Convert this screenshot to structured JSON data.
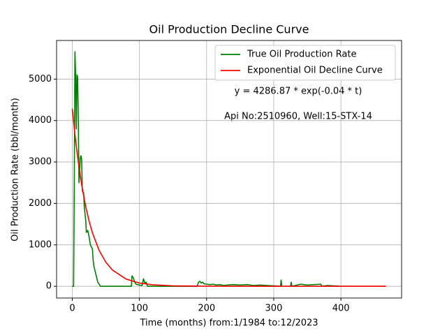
{
  "chart_data": {
    "type": "line",
    "title": "Oil Production Decline Curve",
    "xlabel": "Time (months) from:1/1984 to:12/2023",
    "ylabel": "Oil Production Rate (bbl/month)",
    "annotations": [
      "y = 4286.87 * exp(-0.04 * t)",
      "Api No:2510960, Well:15-STX-14"
    ],
    "xlim": [
      -23.35,
      490.35
    ],
    "ylim": [
      -283,
      5932
    ],
    "xticks": [
      0,
      100,
      200,
      300,
      400
    ],
    "yticks": [
      0,
      1000,
      2000,
      3000,
      4000,
      5000
    ],
    "grid": true,
    "legend": "upper right",
    "series": [
      {
        "name": "True Oil Production Rate",
        "color": "#008000",
        "x": [
          0,
          2,
          3,
          4,
          5,
          6,
          7,
          8,
          9,
          10,
          12,
          13,
          14,
          15,
          17,
          18,
          20,
          21,
          23,
          25,
          27,
          30,
          31,
          32,
          35,
          38,
          42,
          88,
          89,
          91,
          93,
          95,
          100,
          104,
          106,
          108,
          110,
          112,
          186,
          188,
          190,
          192,
          194,
          196,
          200,
          205,
          210,
          215,
          220,
          225,
          230,
          240,
          250,
          260,
          270,
          280,
          290,
          300,
          310,
          311,
          312,
          325,
          326,
          327,
          340,
          350,
          360,
          370,
          372,
          380,
          400,
          467
        ],
        "values": [
          0,
          0,
          2500,
          5660,
          5100,
          3800,
          5100,
          5050,
          4000,
          2500,
          3100,
          3150,
          3050,
          2300,
          2250,
          1900,
          1600,
          1300,
          1350,
          1200,
          1000,
          900,
          650,
          500,
          300,
          100,
          0,
          0,
          250,
          200,
          100,
          50,
          30,
          20,
          180,
          80,
          100,
          0,
          0,
          100,
          120,
          80,
          100,
          60,
          50,
          40,
          50,
          30,
          40,
          20,
          30,
          40,
          30,
          40,
          20,
          30,
          20,
          10,
          0,
          150,
          0,
          0,
          100,
          0,
          50,
          30,
          40,
          50,
          0,
          20,
          0,
          0
        ]
      },
      {
        "name": "Exponential Oil Decline Curve",
        "color": "#ff0000",
        "x": [
          0,
          5,
          10,
          15,
          20,
          25,
          30,
          40,
          50,
          60,
          80,
          100,
          120,
          150,
          200,
          300,
          400,
          467
        ],
        "values": [
          4287,
          3510,
          2874,
          2353,
          1926,
          1577,
          1291,
          866,
          580,
          389,
          175,
          78.5,
          35.3,
          10.6,
          1.4,
          0.03,
          0,
          0
        ]
      }
    ]
  }
}
